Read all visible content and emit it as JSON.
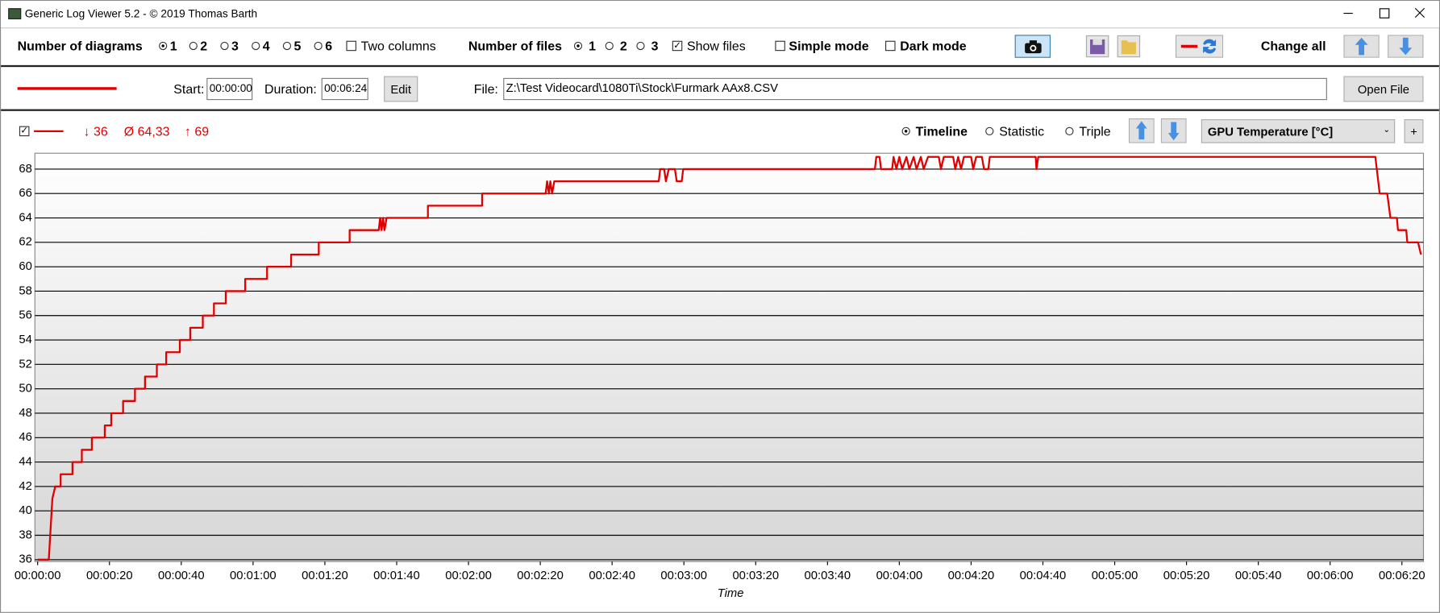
{
  "window": {
    "title": "Generic Log Viewer 5.2 - © 2019 Thomas Barth"
  },
  "toolbar": {
    "diagrams_label": "Number of diagrams",
    "diagram_options": [
      "1",
      "2",
      "3",
      "4",
      "5",
      "6"
    ],
    "two_columns": "Two columns",
    "files_label": "Number of files",
    "file_options": [
      "1",
      "2",
      "3"
    ],
    "show_files": "Show files",
    "simple_mode": "Simple mode",
    "dark_mode": "Dark mode",
    "change_all": "Change all"
  },
  "file_bar": {
    "start_label": "Start:",
    "start": "00:00:00",
    "duration_label": "Duration:",
    "duration": "00:06:24",
    "edit": "Edit",
    "file_label": "File:",
    "file": "Z:\\Test Videocard\\1080Ti\\Stock\\Furmark AAx8.CSV",
    "open_file": "Open File"
  },
  "diagram_bar": {
    "min": "↓ 36",
    "avg": "Ø 64,33",
    "max": "↑ 69",
    "modes": [
      "Timeline",
      "Statistic",
      "Triple"
    ],
    "sensor": "GPU Temperature [°C]",
    "add": "+"
  },
  "chart_data": {
    "type": "line",
    "x_label": "Time",
    "color": "#e00000",
    "x": [
      0,
      3.1,
      4.1,
      4.9,
      6.4,
      6.4,
      9.7,
      9.7,
      12.3,
      12.3,
      15.1,
      15.1,
      18.7,
      18.7,
      20.5,
      20.5,
      23.8,
      23.8,
      27.1,
      27.1,
      29.9,
      29.9,
      33.2,
      33.2,
      35.8,
      35.8,
      39.6,
      39.6,
      42.5,
      42.5,
      46,
      46,
      49.1,
      49.1,
      52.4,
      52.4,
      57.8,
      57.8,
      63.9,
      63.9,
      70.6,
      70.6,
      78.3,
      78.3,
      86.9,
      86.9,
      95,
      95.4,
      95.8,
      96.2,
      96.6,
      97.2,
      108.7,
      108.7,
      123.8,
      123.8,
      141.5,
      141.9,
      142.4,
      142.8,
      143.3,
      143.9,
      173,
      173.4,
      174.5,
      175,
      175.8,
      177.5,
      178,
      179.4,
      179.8,
      233.2,
      233.6,
      234.5,
      234.9,
      238,
      238.4,
      239.2,
      240,
      240.8,
      242,
      242.8,
      244,
      244.8,
      246,
      246.8,
      248,
      251,
      251.6,
      252.4,
      255,
      255.6,
      256.4,
      257.2,
      258,
      260,
      260.6,
      261.4,
      263,
      263.6,
      264.8,
      265.2,
      278,
      278.2,
      278.7,
      372.6,
      373.8,
      375.9,
      376.8,
      378.6,
      378.9,
      381.2,
      381.5,
      384.5,
      385.3
    ],
    "values": [
      36,
      36,
      41,
      42,
      42,
      43,
      43,
      44,
      44,
      45,
      45,
      46,
      46,
      47,
      47,
      48,
      48,
      49,
      49,
      50,
      50,
      51,
      51,
      52,
      52,
      53,
      53,
      54,
      54,
      55,
      55,
      56,
      56,
      57,
      57,
      58,
      58,
      59,
      59,
      60,
      60,
      61,
      61,
      62,
      62,
      63,
      63,
      64,
      63,
      64,
      63,
      64,
      64,
      65,
      65,
      66,
      66,
      67,
      66,
      67,
      66,
      67,
      67,
      68,
      68,
      67,
      68,
      68,
      67,
      67,
      68,
      68,
      69,
      69,
      68,
      68,
      69,
      68,
      69,
      68,
      69,
      68,
      69,
      68,
      69,
      68,
      69,
      69,
      68,
      69,
      69,
      68,
      69,
      68,
      69,
      69,
      68,
      69,
      69,
      68,
      68,
      69,
      69,
      68,
      69,
      69,
      66,
      66,
      64,
      64,
      63,
      63,
      62,
      62,
      61
    ],
    "xlim": [
      0,
      386
    ],
    "ylim": [
      36,
      69.3
    ],
    "xticks": [
      {
        "value": 0,
        "label": "00:00:00"
      },
      {
        "value": 20,
        "label": "00:00:20"
      },
      {
        "value": 40,
        "label": "00:00:40"
      },
      {
        "value": 60,
        "label": "00:01:00"
      },
      {
        "value": 80,
        "label": "00:01:20"
      },
      {
        "value": 100,
        "label": "00:01:40"
      },
      {
        "value": 120,
        "label": "00:02:00"
      },
      {
        "value": 140,
        "label": "00:02:20"
      },
      {
        "value": 160,
        "label": "00:02:40"
      },
      {
        "value": 180,
        "label": "00:03:00"
      },
      {
        "value": 200,
        "label": "00:03:20"
      },
      {
        "value": 220,
        "label": "00:03:40"
      },
      {
        "value": 240,
        "label": "00:04:00"
      },
      {
        "value": 260,
        "label": "00:04:20"
      },
      {
        "value": 280,
        "label": "00:04:40"
      },
      {
        "value": 300,
        "label": "00:05:00"
      },
      {
        "value": 320,
        "label": "00:05:20"
      },
      {
        "value": 340,
        "label": "00:05:40"
      },
      {
        "value": 360,
        "label": "00:06:00"
      },
      {
        "value": 380,
        "label": "00:06:20"
      }
    ],
    "yticks": [
      36,
      38,
      40,
      42,
      44,
      46,
      48,
      50,
      52,
      54,
      56,
      58,
      60,
      62,
      64,
      66,
      68
    ],
    "grid": true
  }
}
